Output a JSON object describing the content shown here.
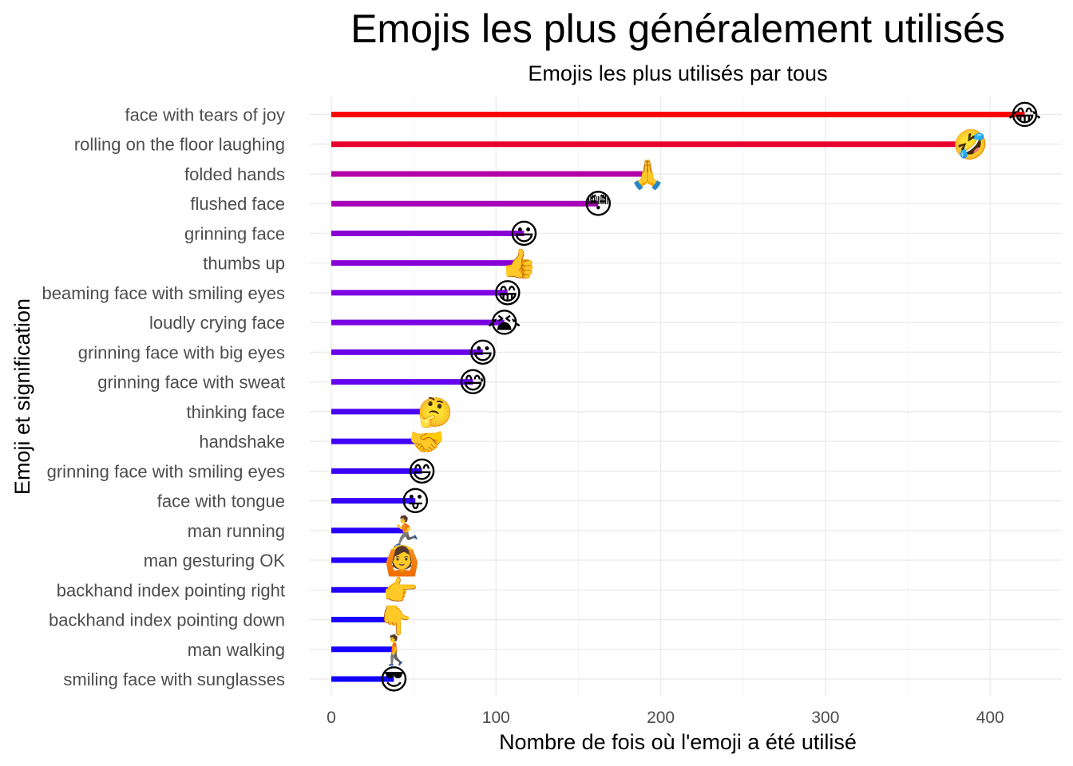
{
  "chart_data": {
    "type": "bar",
    "title": "Emojis les plus généralement utilisés",
    "subtitle": "Emojis les plus utilisés par tous",
    "xlabel": "Nombre de fois où l'emoji a été utilisé",
    "ylabel": "Emoji et signification",
    "xlim": [
      -13,
      445
    ],
    "xticks": [
      0,
      100,
      200,
      300,
      400
    ],
    "grid": true,
    "orientation": "horizontal",
    "categories": [
      "face with tears of joy",
      "rolling on the floor laughing",
      "folded hands",
      "flushed face",
      "grinning face",
      "thumbs up",
      "beaming face with smiling eyes",
      "loudly crying face",
      "grinning face with big eyes",
      "grinning face with sweat",
      "thinking face",
      "handshake",
      "grinning face with smiling eyes",
      "face with tongue",
      "man running",
      "man gesturing OK",
      "backhand index pointing right",
      "backhand index pointing down",
      "man walking",
      "smiling face with sunglasses"
    ],
    "values": [
      421,
      388,
      192,
      162,
      117,
      114,
      107,
      105,
      92,
      86,
      63,
      58,
      55,
      51,
      45,
      43,
      42,
      39,
      39,
      38
    ],
    "emojis": [
      "😂",
      "🤣",
      "🙏",
      "😳",
      "😃",
      "👍",
      "😁",
      "😭",
      "😃",
      "😅",
      "🤔",
      "🤝",
      "😄",
      "😛",
      "🏃",
      "🙆",
      "👉",
      "👇",
      "🚶",
      "😎"
    ],
    "colors": [
      "#ff0000",
      "#e8002e",
      "#b200a6",
      "#a600b8",
      "#8a00d4",
      "#8600d8",
      "#7e00e0",
      "#7a00e2",
      "#6c00ea",
      "#6500ee",
      "#4a00f4",
      "#4200f6",
      "#3a00f8",
      "#3300f9",
      "#2700fb",
      "#2400fb",
      "#2000fc",
      "#1a00fd",
      "#1700fd",
      "#0f00fe"
    ]
  }
}
